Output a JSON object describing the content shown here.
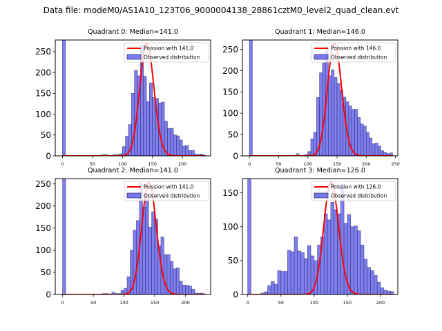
{
  "suptitle": "Data file: modeM0/AS1A10_123T06_9000004138_28861cztM0_level2_quad_clean.evt",
  "colors": {
    "bar_fill": "#7777ee",
    "bar_edge": "#2a2a66",
    "poisson_line": "#ff0000",
    "zero_bar_fill": "#8080f0"
  },
  "chart_data": [
    {
      "type": "bar",
      "title": "Quadrant 0: Median=141.0",
      "legend": [
        "Poission with 141.0",
        "Observed distribution"
      ],
      "legend_position": "top-right",
      "bin_width": 5,
      "poisson_mean": 141.0,
      "xlim": [
        -12,
        247
      ],
      "ylim": [
        0,
        278
      ],
      "xticks": [
        0,
        50,
        100,
        150,
        200
      ],
      "yticks": [
        0,
        50,
        100,
        150,
        200,
        250
      ],
      "bins_start": [
        0,
        65,
        70,
        85,
        90,
        95,
        100,
        105,
        110,
        115,
        120,
        125,
        130,
        135,
        140,
        145,
        150,
        155,
        160,
        165,
        170,
        175,
        180,
        185,
        190,
        195,
        200,
        205,
        210,
        215,
        220,
        225,
        230
      ],
      "values": [
        400,
        3,
        3,
        3,
        3,
        5,
        22,
        47,
        75,
        150,
        205,
        192,
        265,
        191,
        130,
        175,
        140,
        138,
        127,
        129,
        83,
        66,
        66,
        50,
        48,
        38,
        23,
        25,
        13,
        13,
        4,
        4,
        4
      ]
    },
    {
      "type": "bar",
      "title": "Quadrant 1: Median=146.0",
      "legend": [
        "Poission with 146.0",
        "Observed distribution"
      ],
      "legend_position": "top-right",
      "bin_width": 5,
      "poisson_mean": 146.0,
      "xlim": [
        -12,
        254
      ],
      "ylim": [
        0,
        272
      ],
      "xticks": [
        0,
        50,
        100,
        150,
        200,
        250
      ],
      "yticks": [
        0,
        50,
        100,
        150,
        200,
        250
      ],
      "bins_start": [
        0,
        80,
        95,
        100,
        105,
        110,
        115,
        120,
        125,
        130,
        135,
        140,
        145,
        150,
        155,
        160,
        165,
        170,
        175,
        180,
        185,
        190,
        195,
        200,
        205,
        210,
        215,
        220,
        225,
        230,
        235,
        240
      ],
      "values": [
        400,
        5,
        3,
        10,
        40,
        55,
        137,
        195,
        218,
        256,
        188,
        202,
        184,
        170,
        153,
        138,
        127,
        117,
        109,
        109,
        90,
        75,
        70,
        55,
        42,
        28,
        30,
        23,
        12,
        8,
        5,
        7
      ]
    },
    {
      "type": "bar",
      "title": "Quadrant 2: Median=141.0",
      "legend": [
        "Poission with 141.0",
        "Observed distribution"
      ],
      "legend_position": "top-right",
      "bin_width": 5,
      "poisson_mean": 141.0,
      "xlim": [
        -12,
        241
      ],
      "ylim": [
        0,
        262
      ],
      "xticks": [
        0,
        50,
        100,
        150,
        200
      ],
      "yticks": [
        0,
        50,
        100,
        150,
        200,
        250
      ],
      "bins_start": [
        0,
        65,
        70,
        80,
        85,
        90,
        95,
        100,
        105,
        110,
        115,
        120,
        125,
        130,
        135,
        140,
        145,
        150,
        155,
        160,
        165,
        170,
        175,
        180,
        185,
        190,
        195,
        200,
        205,
        210,
        215,
        220,
        225
      ],
      "values": [
        400,
        2,
        2,
        5,
        2,
        2,
        9,
        14,
        40,
        100,
        145,
        167,
        252,
        198,
        218,
        152,
        187,
        170,
        110,
        130,
        90,
        90,
        75,
        58,
        60,
        30,
        21,
        21,
        19,
        12,
        3,
        3,
        3
      ]
    },
    {
      "type": "bar",
      "title": "Quadrant 3: Median=126.0",
      "legend": [
        "Poission with 126.0",
        "Observed distribution"
      ],
      "legend_position": "top-right",
      "bin_width": 5,
      "poisson_mean": 126.0,
      "xlim": [
        -8,
        226
      ],
      "ylim": [
        0,
        171
      ],
      "xticks": [
        0,
        50,
        100,
        150,
        200
      ],
      "yticks": [
        0,
        50,
        100,
        150
      ],
      "bins_start": [
        0,
        20,
        25,
        30,
        35,
        40,
        45,
        50,
        55,
        60,
        65,
        70,
        75,
        80,
        85,
        90,
        95,
        100,
        105,
        110,
        115,
        120,
        125,
        130,
        135,
        140,
        145,
        150,
        155,
        160,
        165,
        170,
        175,
        180,
        185,
        190,
        195,
        200,
        205,
        210,
        215
      ],
      "values": [
        400,
        2,
        4,
        13,
        19,
        15,
        35,
        34,
        34,
        65,
        63,
        85,
        64,
        62,
        53,
        72,
        57,
        50,
        73,
        85,
        119,
        110,
        136,
        125,
        119,
        163,
        105,
        118,
        100,
        101,
        94,
        73,
        52,
        40,
        35,
        28,
        18,
        10,
        6,
        5,
        4
      ]
    }
  ]
}
